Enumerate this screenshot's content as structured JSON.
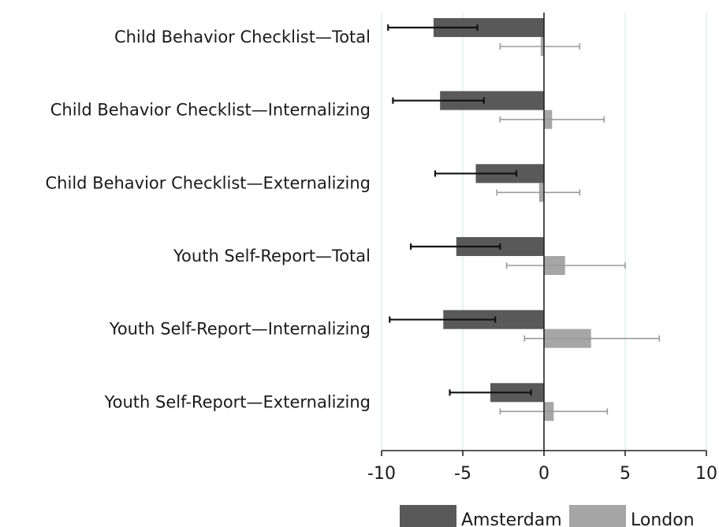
{
  "chart_data": {
    "type": "bar",
    "orientation": "horizontal",
    "categories": [
      "Child Behavior Checklist—Total",
      "Child Behavior Checklist—Internalizing",
      "Child Behavior Checklist—Externalizing",
      "Youth Self-Report—Total",
      "Youth Self-Report—Internalizing",
      "Youth Self-Report—Externalizing"
    ],
    "series": [
      {
        "name": "Amsterdam",
        "color": "#595959",
        "values": [
          -6.8,
          -6.4,
          -4.2,
          -5.4,
          -6.2,
          -3.3
        ],
        "error_low": [
          -9.6,
          -9.3,
          -6.7,
          -8.2,
          -9.5,
          -5.8
        ],
        "error_high": [
          -4.1,
          -3.7,
          -1.7,
          -2.7,
          -3.0,
          -0.8
        ]
      },
      {
        "name": "London",
        "color": "#a6a6a6",
        "values": [
          -0.2,
          0.5,
          -0.3,
          1.3,
          2.9,
          0.6
        ],
        "error_low": [
          -2.7,
          -2.7,
          -2.9,
          -2.3,
          -1.2,
          -2.7
        ],
        "error_high": [
          2.2,
          3.7,
          2.2,
          5.0,
          7.1,
          3.9
        ]
      }
    ],
    "xlim": [
      -10,
      10
    ],
    "xticks": [
      "-10",
      "-5",
      "0",
      "5",
      "10"
    ],
    "xtick_values": [
      -10,
      -5,
      0,
      5,
      10
    ],
    "grid": "vertical",
    "grid_color": "#d9e8e3",
    "legend_position": "bottom-right",
    "title": "",
    "xlabel": "",
    "ylabel": ""
  }
}
